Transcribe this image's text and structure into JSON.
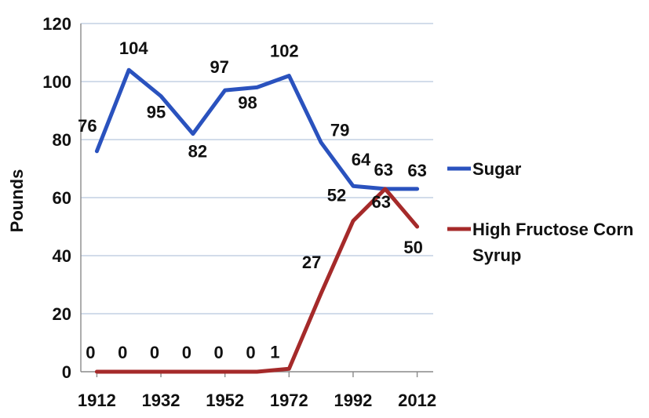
{
  "chart_data": {
    "type": "line",
    "title": "",
    "xlabel": "",
    "ylabel": "Pounds",
    "ylim": [
      0,
      120
    ],
    "yticks": [
      0,
      20,
      40,
      60,
      80,
      100,
      120
    ],
    "xlim": [
      1907,
      2017
    ],
    "xticks": [
      1912,
      1932,
      1952,
      1972,
      1992,
      2012
    ],
    "grid": true,
    "legend_position": "right",
    "x": [
      1912,
      1922,
      1932,
      1942,
      1952,
      1962,
      1972,
      1982,
      1992,
      2002,
      2012
    ],
    "series": [
      {
        "name": "Sugar",
        "color": "#2a52be",
        "values": [
          76,
          104,
          95,
          82,
          97,
          98,
          102,
          79,
          64,
          63,
          63
        ],
        "labels": [
          "76",
          "104",
          "95",
          "82",
          "97",
          "98",
          "102",
          "79",
          "64",
          "63",
          "63"
        ]
      },
      {
        "name": "High Fructose Corn Syrup",
        "name_lines": [
          "High Fructose Corn",
          "Syrup"
        ],
        "color": "#a52a2a",
        "values": [
          0,
          0,
          0,
          0,
          0,
          0,
          1,
          27,
          52,
          63,
          50
        ],
        "labels": [
          "0",
          "0",
          "0",
          "0",
          "0",
          "0",
          "1",
          "27",
          "52",
          "63",
          "50"
        ]
      }
    ]
  }
}
